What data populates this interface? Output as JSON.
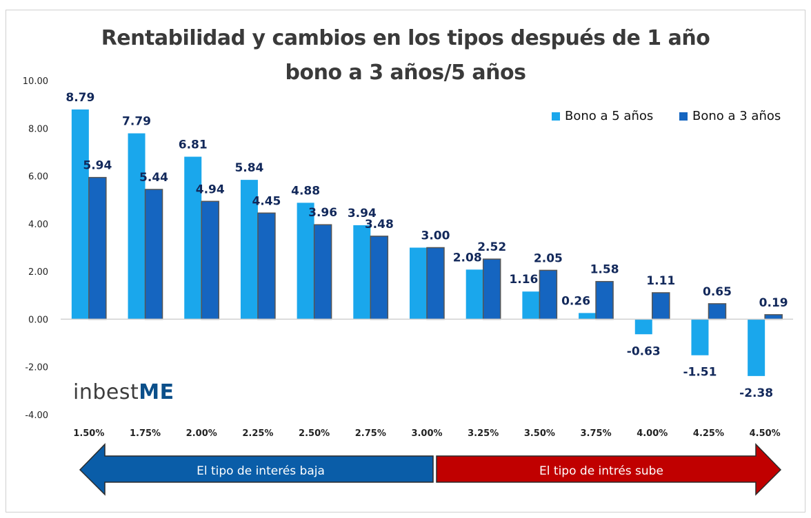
{
  "chart_data": {
    "type": "bar",
    "title": "Rentabilidad y cambios en los tipos después de 1 año",
    "subtitle": "bono a 3 años/5 años",
    "categories": [
      "1.50%",
      "1.75%",
      "2.00%",
      "2.25%",
      "2.50%",
      "2.75%",
      "3.00%",
      "3.25%",
      "3.50%",
      "3.75%",
      "4.00%",
      "4.25%",
      "4.50%"
    ],
    "series": [
      {
        "name": "Bono a 5 años",
        "color": "#1aa7ec",
        "values": [
          8.79,
          7.79,
          6.81,
          5.84,
          4.88,
          3.94,
          3.0,
          2.08,
          1.16,
          0.26,
          -0.63,
          -1.51,
          -2.38
        ],
        "labels": [
          "8.79",
          "7.79",
          "6.81",
          "5.84",
          "4.88",
          "3.94",
          "",
          "2.08",
          "1.16",
          "0.26",
          "-0.63",
          "-1.51",
          "-2.38"
        ]
      },
      {
        "name": "Bono a 3 años",
        "color": "#1565c0",
        "values": [
          5.94,
          5.44,
          4.94,
          4.45,
          3.96,
          3.48,
          3.0,
          2.52,
          2.05,
          1.58,
          1.11,
          0.65,
          0.19
        ],
        "labels": [
          "5.94",
          "5.44",
          "4.94",
          "4.45",
          "3.96",
          "3.48",
          "3.00",
          "2.52",
          "2.05",
          "1.58",
          "1.11",
          "0.65",
          "0.19"
        ]
      }
    ],
    "ylim": [
      -4,
      10
    ],
    "yticks": [
      "-4.00",
      "-2.00",
      "0.00",
      "2.00",
      "4.00",
      "6.00",
      "8.00",
      "10.00"
    ],
    "grid": false,
    "legend": "top-right"
  },
  "arrows": {
    "left": {
      "label": "El tipo de interés baja",
      "color": "#0a5da8"
    },
    "right": {
      "label": "El tipo de intrés sube",
      "color": "#c00000"
    }
  },
  "logo": {
    "text_main": "inbest",
    "text_accent": "ME"
  },
  "colors": {
    "title": "#3a3a3a",
    "data_label": "#12285a",
    "axis": "#d0d0d0"
  }
}
